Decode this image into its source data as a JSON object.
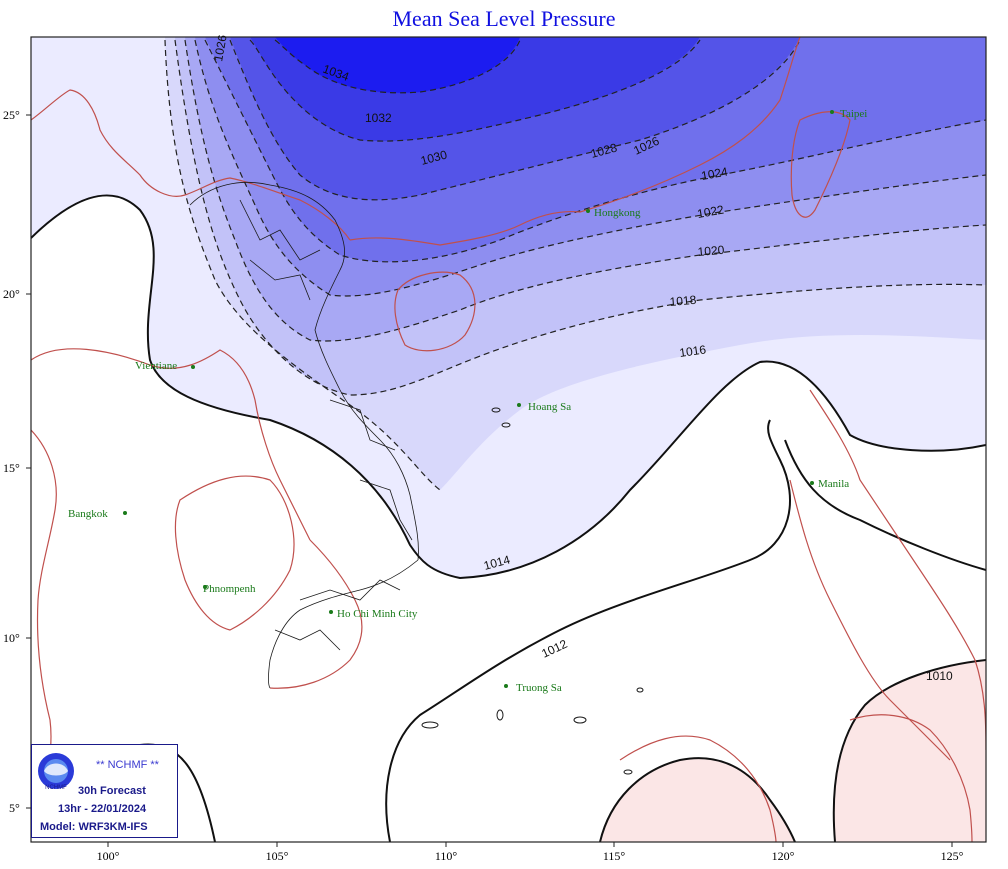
{
  "title": "Mean Sea Level Pressure",
  "axes": {
    "lon_ticks": [
      "100°",
      "105°",
      "110°",
      "115°",
      "120°",
      "125°"
    ],
    "lat_ticks": [
      "25°",
      "20°",
      "15°",
      "10°",
      "5°"
    ],
    "lon_range": [
      97.5,
      126.5
    ],
    "lat_range": [
      4.0,
      27.0
    ]
  },
  "isobar_labels": [
    "1026",
    "1034",
    "1032",
    "1030",
    "1028",
    "1026",
    "1024",
    "1022",
    "1020",
    "1018",
    "1016",
    "1014",
    "1012",
    "1010"
  ],
  "cities": [
    {
      "name": "Taipei"
    },
    {
      "name": "Hongkong"
    },
    {
      "name": "Vientiane"
    },
    {
      "name": "Hoang Sa"
    },
    {
      "name": "Manila"
    },
    {
      "name": "Bangkok"
    },
    {
      "name": "Phnompenh"
    },
    {
      "name": "Ho Chi Minh City"
    },
    {
      "name": "Truong Sa"
    }
  ],
  "info_box": {
    "org": "** NCHMF **",
    "logo_text": "NCHMF",
    "forecast": "30h Forecast",
    "time": "13hr - 22/01/2024",
    "model": "Model: WRF3KM-IFS"
  },
  "colors": {
    "high_pressure": "#1c1cf0",
    "low_pressure": "#fbe6e6",
    "coastline": "#c0504d",
    "city": "#1a7a1a",
    "title": "#1010e0"
  }
}
